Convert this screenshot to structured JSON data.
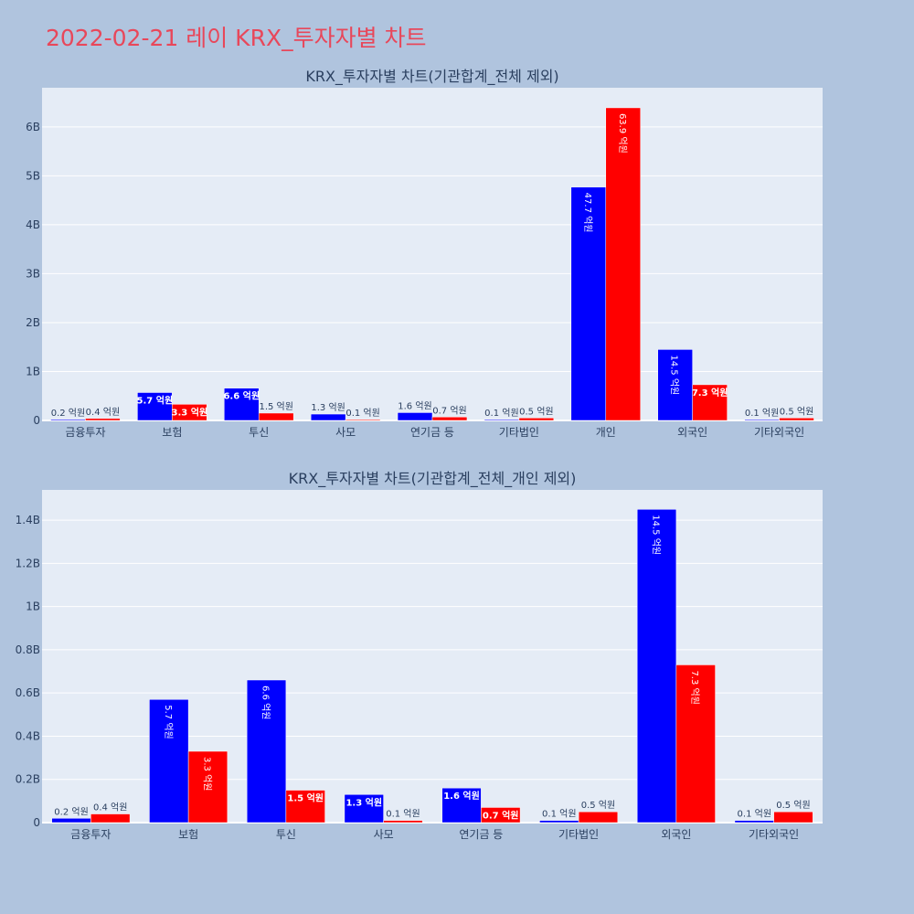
{
  "page": {
    "title": "2022-02-21 레이 KRX_투자자별 차트"
  },
  "colors": {
    "background": "#b0c4de",
    "plot_bg": "#e5ecf6",
    "series_blue": "#0000ff",
    "series_red": "#ff0000",
    "title": "#e8475a",
    "text": "#2a3f5f"
  },
  "chart_data": [
    {
      "type": "bar",
      "title": "KRX_투자자별 차트(기관합계_전체 제외)",
      "categories": [
        "금융투자",
        "보험",
        "투신",
        "사모",
        "연기금 등",
        "기타법인",
        "개인",
        "외국인",
        "기타외국인"
      ],
      "series": [
        {
          "color": "#0000ff",
          "values": [
            20000000,
            570000000,
            660000000,
            130000000,
            160000000,
            10000000,
            4770000000,
            1450000000,
            10000000
          ],
          "labels": [
            "0.2 억원",
            "5.7 억원",
            "6.6 억원",
            "1.3 억원",
            "1.6 억원",
            "0.1 억원",
            "47.7 억원",
            "14.5 억원",
            "0.1 억원"
          ]
        },
        {
          "color": "#ff0000",
          "values": [
            40000000,
            330000000,
            150000000,
            10000000,
            70000000,
            50000000,
            6390000000,
            730000000,
            50000000
          ],
          "labels": [
            "0.4 억원",
            "3.3 억원",
            "1.5 억원",
            "0.1 억원",
            "0.7 억원",
            "0.5 억원",
            "63.9 억원",
            "7.3 억원",
            "0.5 억원"
          ]
        }
      ],
      "ylim": [
        0,
        6800000000
      ],
      "yticks": [
        0,
        1000000000,
        2000000000,
        3000000000,
        4000000000,
        5000000000,
        6000000000
      ],
      "ytick_labels": [
        "0",
        "1B",
        "2B",
        "3B",
        "4B",
        "5B",
        "6B"
      ],
      "grid": true
    },
    {
      "type": "bar",
      "title": "KRX_투자자별 차트(기관합계_전체_개인 제외)",
      "categories": [
        "금융투자",
        "보험",
        "투신",
        "사모",
        "연기금 등",
        "기타법인",
        "외국인",
        "기타외국인"
      ],
      "series": [
        {
          "color": "#0000ff",
          "values": [
            20000000,
            570000000,
            660000000,
            130000000,
            160000000,
            10000000,
            1450000000,
            10000000
          ],
          "labels": [
            "0.2 억원",
            "5.7 억원",
            "6.6 억원",
            "1.3 억원",
            "1.6 억원",
            "0.1 억원",
            "14.5 억원",
            "0.1 억원"
          ]
        },
        {
          "color": "#ff0000",
          "values": [
            40000000,
            330000000,
            150000000,
            10000000,
            70000000,
            50000000,
            730000000,
            50000000
          ],
          "labels": [
            "0.4 억원",
            "3.3 억원",
            "1.5 억원",
            "0.1 억원",
            "0.7 억원",
            "0.5 억원",
            "7.3 억원",
            "0.5 억원"
          ]
        }
      ],
      "ylim": [
        0,
        1540000000
      ],
      "yticks": [
        0,
        200000000,
        400000000,
        600000000,
        800000000,
        1000000000,
        1200000000,
        1400000000
      ],
      "ytick_labels": [
        "0",
        "0.2B",
        "0.4B",
        "0.6B",
        "0.8B",
        "1B",
        "1.2B",
        "1.4B"
      ],
      "grid": true
    }
  ]
}
